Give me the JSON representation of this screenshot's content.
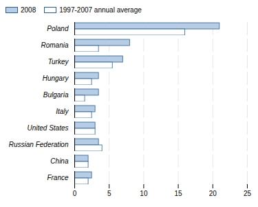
{
  "chart_data": {
    "type": "bar",
    "orientation": "horizontal",
    "categories": [
      "Poland",
      "Romania",
      "Turkey",
      "Hungary",
      "Bulgaria",
      "Italy",
      "United States",
      "Russian Federation",
      "China",
      "France"
    ],
    "series": [
      {
        "name": "2008",
        "color": "#b8cce4",
        "values": [
          21.0,
          8.0,
          7.0,
          3.5,
          3.5,
          3.0,
          3.0,
          3.5,
          2.0,
          2.5
        ]
      },
      {
        "name": "1997-2007 annual average",
        "color": "#ffffff",
        "values": [
          16.0,
          3.5,
          5.5,
          2.5,
          1.5,
          2.5,
          3.0,
          4.0,
          2.0,
          2.0
        ]
      }
    ],
    "xlim": [
      0,
      25
    ],
    "xticks": [
      0,
      5,
      10,
      15,
      20,
      25
    ],
    "grid": true,
    "legend": "upper left"
  }
}
